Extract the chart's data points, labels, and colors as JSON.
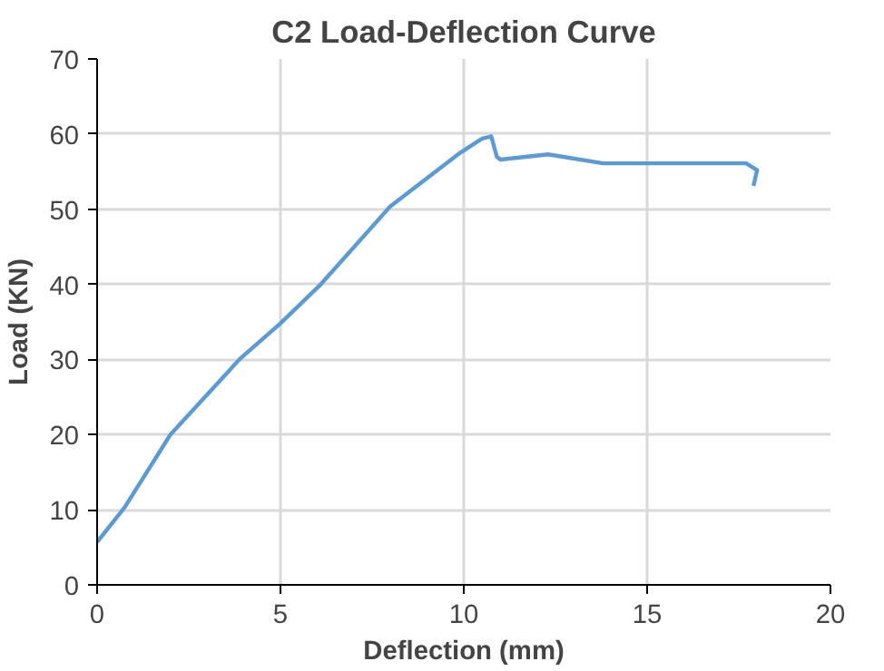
{
  "chart_data": {
    "type": "line",
    "title": "C2 Load-Deflection Curve",
    "xlabel": "Deflection (mm)",
    "ylabel": "Load (KN)",
    "xlim": [
      0,
      20
    ],
    "xticks": [
      0,
      5,
      10,
      15,
      20
    ],
    "ylim": [
      0,
      70
    ],
    "yticks": [
      0,
      10,
      20,
      30,
      40,
      50,
      60,
      70
    ],
    "grid": true,
    "marker": "none",
    "line_style": "solid",
    "series": [
      {
        "color": "#5b9bd5",
        "x": [
          0,
          0.75,
          2.0,
          3.9,
          5.0,
          6.1,
          8.0,
          9.9,
          10.5,
          10.75,
          10.9,
          11.0,
          12.3,
          13.8,
          16.6,
          17.7,
          18.0,
          17.9
        ],
        "values": [
          5.7,
          10.3,
          20,
          30.1,
          34.8,
          40,
          50.4,
          57.5,
          59.4,
          59.7,
          57.0,
          56.6,
          57.3,
          56.1,
          56.1,
          56.1,
          55.2,
          53.1
        ]
      }
    ]
  }
}
